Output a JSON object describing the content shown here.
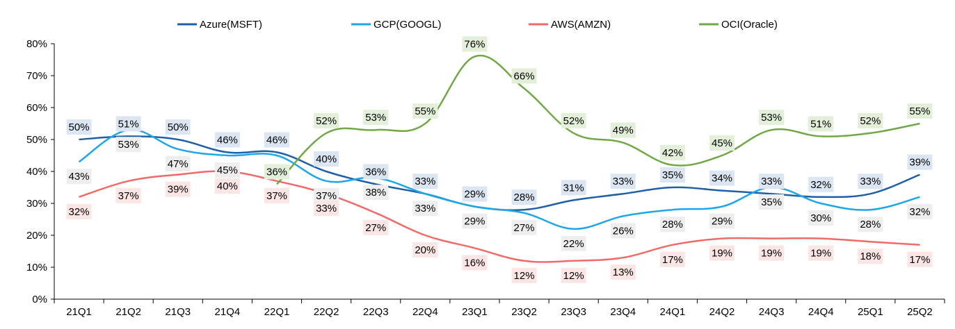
{
  "chart_data": {
    "type": "line",
    "categories": [
      "21Q1",
      "21Q2",
      "21Q3",
      "21Q4",
      "22Q1",
      "22Q2",
      "22Q3",
      "22Q4",
      "23Q1",
      "23Q2",
      "23Q3",
      "23Q4",
      "24Q1",
      "24Q2",
      "24Q3",
      "24Q4",
      "25Q1",
      "25Q2"
    ],
    "ylim": [
      0,
      80
    ],
    "ytick_labels": [
      "0%",
      "10%",
      "20%",
      "30%",
      "40%",
      "50%",
      "60%",
      "70%",
      "80%"
    ],
    "legend_position": "top",
    "grid": false,
    "series": [
      {
        "name": "Azure(MSFT)",
        "color": "#1f5fa8",
        "label_bg": "#dce6f2",
        "label_side": "above",
        "values": [
          50,
          51,
          50,
          46,
          46,
          40,
          36,
          33,
          29,
          28,
          31,
          33,
          35,
          34,
          33,
          32,
          33,
          39
        ],
        "labels": [
          "50%",
          "51%",
          "50%",
          "46%",
          "46%",
          "40%",
          "36%",
          "33%",
          "29%",
          "28%",
          "31%",
          "33%",
          "35%",
          "34%",
          "33%",
          "32%",
          "33%",
          "39%"
        ]
      },
      {
        "name": "GCP(GOOGL)",
        "color": "#1ea6e6",
        "label_bg": "#eeeeee",
        "label_side": "below",
        "values": [
          43,
          53,
          47,
          45,
          45,
          37,
          38,
          33,
          29,
          27,
          22,
          26,
          28,
          29,
          35,
          30,
          28,
          32
        ],
        "labels": [
          "43%",
          "53%",
          "47%",
          "45%",
          "",
          "37%",
          "38%",
          "33%",
          "29%",
          "27%",
          "22%",
          "26%",
          "28%",
          "29%",
          "35%",
          "30%",
          "28%",
          "32%"
        ]
      },
      {
        "name": "AWS(AMZN)",
        "color": "#f06a6a",
        "label_bg": "#fbe5e5",
        "label_side": "below",
        "values": [
          32,
          37,
          39,
          40,
          37,
          33,
          27,
          20,
          16,
          12,
          12,
          13,
          17,
          19,
          19,
          19,
          18,
          17
        ],
        "labels": [
          "32%",
          "37%",
          "39%",
          "40%",
          "37%",
          "33%",
          "27%",
          "20%",
          "16%",
          "12%",
          "12%",
          "13%",
          "17%",
          "19%",
          "19%",
          "19%",
          "18%",
          "17%"
        ]
      },
      {
        "name": "OCI(Oracle)",
        "color": "#70a845",
        "label_bg": "#e3efd9",
        "label_side": "above",
        "values": [
          null,
          null,
          null,
          null,
          36,
          52,
          53,
          55,
          76,
          66,
          52,
          49,
          42,
          45,
          53,
          51,
          52,
          55
        ],
        "labels": [
          "",
          "",
          "",
          "",
          "36%",
          "52%",
          "53%",
          "55%",
          "76%",
          "66%",
          "52%",
          "49%",
          "42%",
          "45%",
          "53%",
          "51%",
          "52%",
          "55%"
        ]
      }
    ]
  }
}
